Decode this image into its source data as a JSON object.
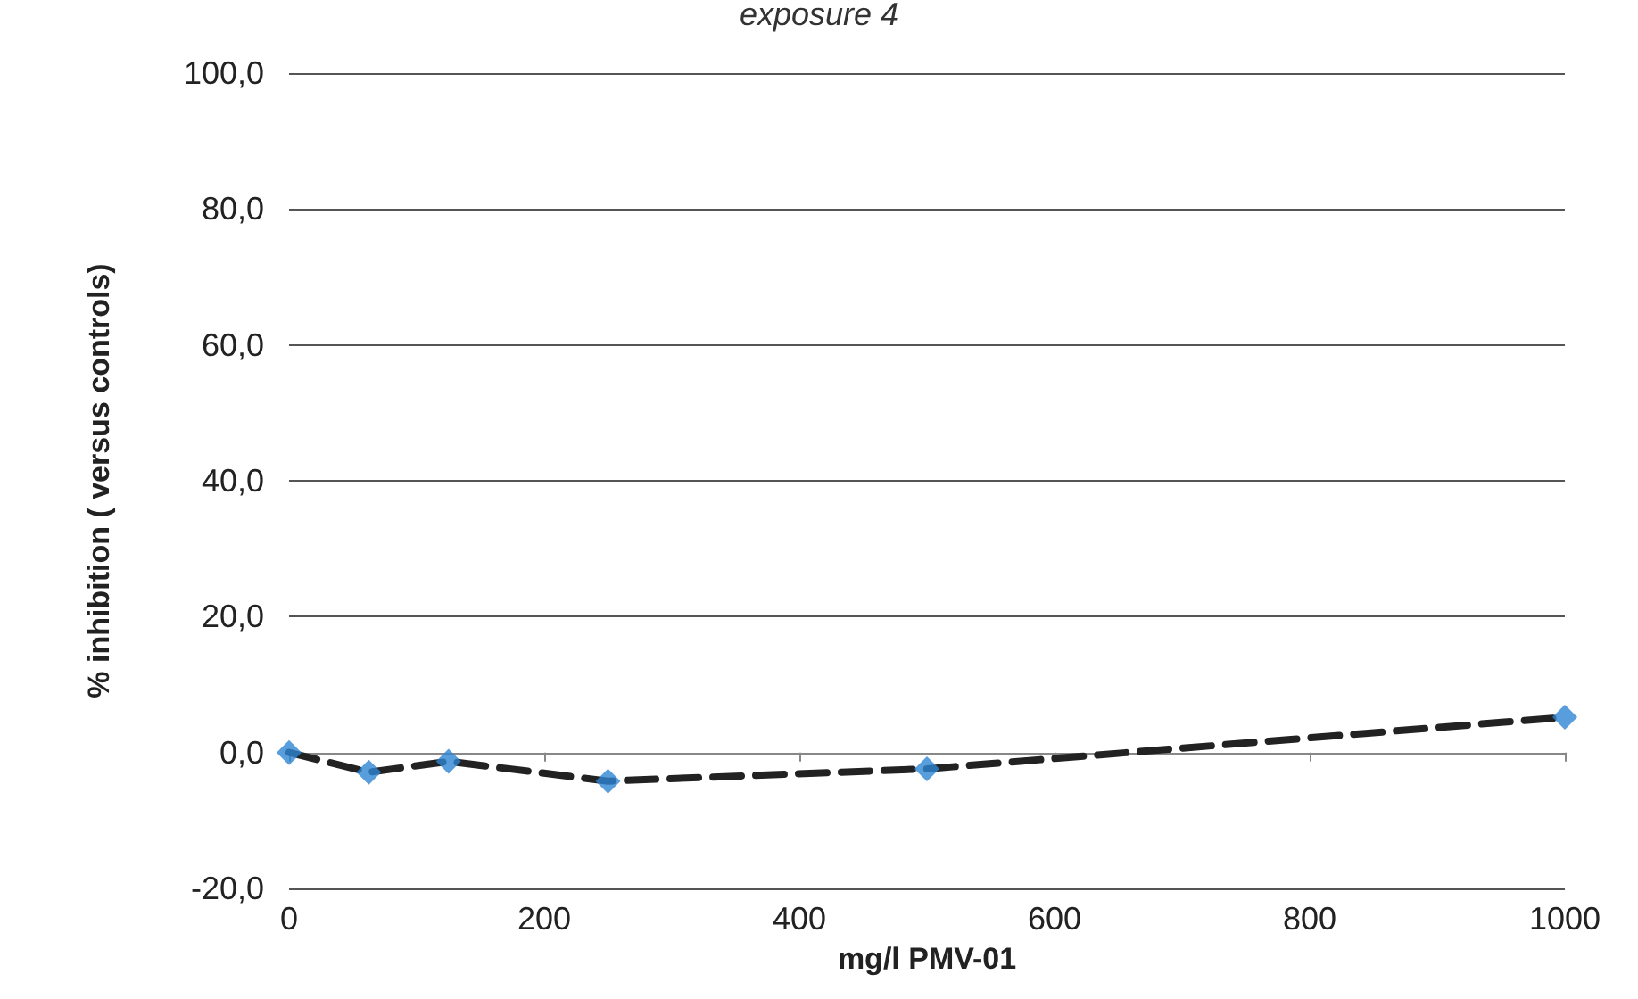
{
  "chart_data": {
    "type": "line",
    "title": "exposure 4",
    "xlabel": "mg/l PMV-01",
    "ylabel": "% inhibition ( versus controls)",
    "x": [
      0,
      62.5,
      125,
      250,
      500,
      1000
    ],
    "series": [
      {
        "color": "#222222",
        "line_style": "dashed",
        "marker": "none",
        "values": [
          0,
          -2.9,
          -1.3,
          -4.2,
          -2.4,
          5.2
        ]
      },
      {
        "type": "scatter",
        "color": "#2e86d3",
        "marker": "diamond",
        "values": [
          0,
          -2.9,
          -1.3,
          -4.2,
          -2.4,
          5.2
        ]
      }
    ],
    "xlim": [
      0,
      1000
    ],
    "xticks": [
      0,
      200,
      400,
      600,
      800,
      1000
    ],
    "ylim": [
      -20,
      100
    ],
    "yticks": [
      {
        "value": -20,
        "label": "-20,0"
      },
      {
        "value": 0,
        "label": "0,0"
      },
      {
        "value": 20,
        "label": "20,0"
      },
      {
        "value": 40,
        "label": "40,0"
      },
      {
        "value": 60,
        "label": "60,0"
      },
      {
        "value": 80,
        "label": "80,0"
      },
      {
        "value": 100,
        "label": "100,0"
      }
    ],
    "grid": "y"
  }
}
